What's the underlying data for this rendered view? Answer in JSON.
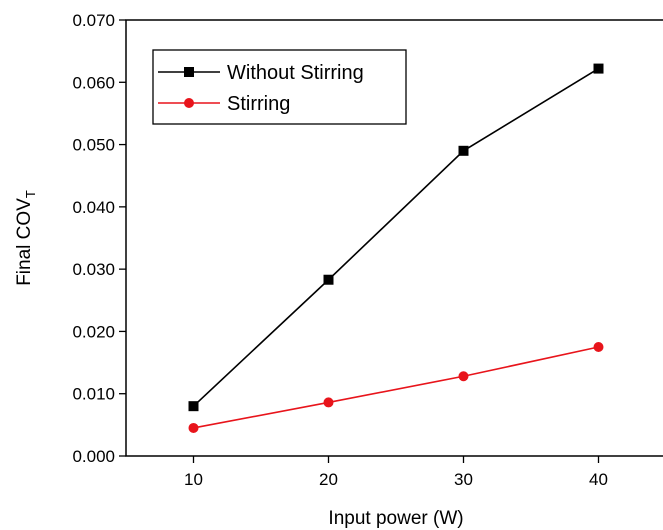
{
  "chart_data": {
    "type": "line",
    "title": "",
    "xlabel": "Input power (W)",
    "ylabel_main": "Final COV",
    "ylabel_sub": "T",
    "x": [
      10,
      20,
      30,
      40
    ],
    "xlim": [
      5,
      45
    ],
    "ylim": [
      0.0,
      0.07
    ],
    "xticks": [
      10,
      20,
      30,
      40
    ],
    "yticks": [
      "0.000",
      "0.010",
      "0.020",
      "0.030",
      "0.040",
      "0.050",
      "0.060",
      "0.070"
    ],
    "grid": false,
    "legend_position": "top-left",
    "series": [
      {
        "name": "Without Stirring",
        "values": [
          0.008,
          0.0283,
          0.049,
          0.0622
        ],
        "color": "#000000",
        "marker": "square"
      },
      {
        "name": "Stirring",
        "values": [
          0.0045,
          0.0086,
          0.0128,
          0.0175
        ],
        "color": "#e8141b",
        "marker": "circle"
      }
    ]
  }
}
